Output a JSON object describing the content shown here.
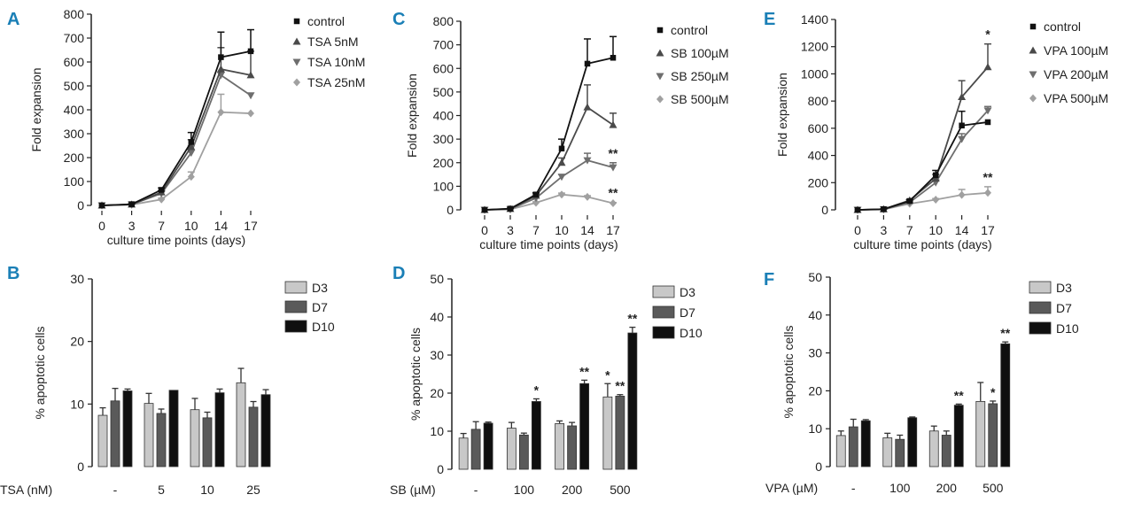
{
  "chart_data": [
    {
      "panel": "A",
      "type": "line",
      "x": [
        0,
        3,
        7,
        10,
        14,
        17
      ],
      "xlabel": "culture time points (days)",
      "ylabel": "Fold expansion",
      "ylim": [
        0,
        800
      ],
      "yticks": [
        0,
        100,
        200,
        300,
        400,
        500,
        600,
        700,
        800
      ],
      "legend_position": "top-right",
      "series": [
        {
          "name": "control",
          "color": "#111111",
          "marker": "square",
          "values": [
            0,
            5,
            65,
            265,
            620,
            645
          ],
          "errors": [
            0,
            2,
            8,
            40,
            105,
            90
          ],
          "stars": []
        },
        {
          "name": "TSA 5nM",
          "color": "#4a4a4a",
          "marker": "triangle-up",
          "values": [
            0,
            4,
            55,
            245,
            570,
            545
          ],
          "errors": [
            0,
            2,
            8,
            30,
            90,
            100
          ],
          "stars": []
        },
        {
          "name": "TSA 10nM",
          "color": "#6e6e6e",
          "marker": "triangle-down",
          "values": [
            0,
            4,
            50,
            220,
            545,
            460
          ],
          "errors": [
            0,
            2,
            8,
            30,
            0,
            0
          ],
          "stars": []
        },
        {
          "name": "TSA 25nM",
          "color": "#a0a0a0",
          "marker": "diamond",
          "values": [
            0,
            3,
            25,
            120,
            390,
            385
          ],
          "errors": [
            0,
            2,
            5,
            20,
            75,
            0
          ],
          "stars": []
        }
      ]
    },
    {
      "panel": "C",
      "type": "line",
      "x": [
        0,
        3,
        7,
        10,
        14,
        17
      ],
      "xlabel": "culture time points (days)",
      "ylabel": "Fold expansion",
      "ylim": [
        0,
        800
      ],
      "yticks": [
        0,
        100,
        200,
        300,
        400,
        500,
        600,
        700,
        800
      ],
      "legend_position": "top-right",
      "series": [
        {
          "name": "control",
          "color": "#111111",
          "marker": "square",
          "values": [
            0,
            5,
            65,
            260,
            620,
            645
          ],
          "errors": [
            0,
            2,
            8,
            40,
            105,
            90
          ],
          "stars": []
        },
        {
          "name": "SB 100µM",
          "color": "#4a4a4a",
          "marker": "triangle-up",
          "values": [
            0,
            4,
            60,
            200,
            435,
            360
          ],
          "errors": [
            0,
            2,
            8,
            20,
            95,
            50
          ],
          "stars": []
        },
        {
          "name": "SB 250µM",
          "color": "#6e6e6e",
          "marker": "triangle-down",
          "values": [
            0,
            3,
            50,
            140,
            210,
            180
          ],
          "errors": [
            0,
            2,
            6,
            10,
            30,
            20
          ],
          "stars": [
            "",
            "",
            "",
            "",
            "",
            "**"
          ]
        },
        {
          "name": "SB 500µM",
          "color": "#a0a0a0",
          "marker": "diamond",
          "values": [
            0,
            2,
            30,
            65,
            55,
            28
          ],
          "errors": [
            0,
            1,
            4,
            6,
            5,
            3
          ],
          "stars": [
            "",
            "",
            "",
            "",
            "",
            "**"
          ]
        }
      ]
    },
    {
      "panel": "E",
      "type": "line",
      "x": [
        0,
        3,
        7,
        10,
        14,
        17
      ],
      "xlabel": "culture time points (days)",
      "ylabel": "Fold expansion",
      "ylim": [
        0,
        1400
      ],
      "yticks": [
        0,
        200,
        400,
        600,
        800,
        1000,
        1200,
        1400
      ],
      "legend_position": "top-right",
      "series": [
        {
          "name": "control",
          "color": "#111111",
          "marker": "square",
          "values": [
            0,
            5,
            65,
            255,
            620,
            645
          ],
          "errors": [
            0,
            2,
            8,
            35,
            105,
            0
          ],
          "stars": []
        },
        {
          "name": "VPA 100µM",
          "color": "#4a4a4a",
          "marker": "triangle-up",
          "values": [
            0,
            5,
            70,
            230,
            830,
            1050
          ],
          "errors": [
            0,
            2,
            8,
            30,
            120,
            170
          ],
          "stars": [
            "",
            "",
            "",
            "",
            "",
            "*"
          ]
        },
        {
          "name": "VPA 200µM",
          "color": "#6e6e6e",
          "marker": "triangle-down",
          "values": [
            0,
            4,
            55,
            200,
            520,
            730
          ],
          "errors": [
            0,
            2,
            6,
            20,
            40,
            30
          ],
          "stars": []
        },
        {
          "name": "VPA 500µM",
          "color": "#a0a0a0",
          "marker": "diamond",
          "values": [
            0,
            3,
            45,
            75,
            110,
            125
          ],
          "errors": [
            0,
            1,
            5,
            8,
            40,
            45
          ],
          "stars": [
            "",
            "",
            "",
            "",
            "",
            "**"
          ]
        }
      ]
    },
    {
      "panel": "B",
      "type": "bar",
      "group_title": "TSA (nM)",
      "categories": [
        "-",
        "5",
        "10",
        "25"
      ],
      "ylabel": "% apoptotic cells",
      "ylim": [
        0,
        30
      ],
      "yticks": [
        0,
        10,
        20,
        30
      ],
      "legend_position": "top-right",
      "series": [
        {
          "name": "D3",
          "color": "#c8c8c8",
          "values": [
            8.2,
            10.1,
            9.1,
            13.4
          ],
          "errors": [
            1.2,
            1.6,
            1.8,
            2.3
          ],
          "stars": [
            "",
            "",
            "",
            ""
          ]
        },
        {
          "name": "D7",
          "color": "#5a5a5a",
          "values": [
            10.5,
            8.5,
            7.8,
            9.5
          ],
          "errors": [
            2.0,
            0.7,
            0.9,
            0.9
          ],
          "stars": [
            "",
            "",
            "",
            ""
          ]
        },
        {
          "name": "D10",
          "color": "#0f0f0f",
          "values": [
            12.1,
            12.2,
            11.8,
            11.5
          ],
          "errors": [
            0.3,
            0.0,
            0.6,
            0.8
          ],
          "stars": [
            "",
            "",
            "",
            ""
          ]
        }
      ]
    },
    {
      "panel": "D",
      "type": "bar",
      "group_title": "SB (µM)",
      "categories": [
        "-",
        "100",
        "200",
        "500"
      ],
      "ylabel": "% apoptotic cells",
      "ylim": [
        0,
        50
      ],
      "yticks": [
        0,
        10,
        20,
        30,
        40,
        50
      ],
      "legend_position": "top-right",
      "series": [
        {
          "name": "D3",
          "color": "#c8c8c8",
          "values": [
            8.2,
            10.8,
            12.0,
            19.0
          ],
          "errors": [
            1.2,
            1.5,
            0.7,
            3.5
          ],
          "stars": [
            "",
            "",
            "",
            "*"
          ]
        },
        {
          "name": "D7",
          "color": "#5a5a5a",
          "values": [
            10.5,
            9.0,
            11.4,
            19.2
          ],
          "errors": [
            2.0,
            0.5,
            0.9,
            0.4
          ],
          "stars": [
            "",
            "",
            "",
            "**"
          ]
        },
        {
          "name": "D10",
          "color": "#0f0f0f",
          "values": [
            12.1,
            17.8,
            22.5,
            35.8
          ],
          "errors": [
            0.3,
            0.7,
            0.9,
            1.5
          ],
          "stars": [
            "",
            "*",
            "**",
            "**"
          ]
        }
      ]
    },
    {
      "panel": "F",
      "type": "bar",
      "group_title": "VPA (µM)",
      "categories": [
        "-",
        "100",
        "200",
        "500"
      ],
      "ylabel": "% apoptotic cells",
      "ylim": [
        0,
        50
      ],
      "yticks": [
        0,
        10,
        20,
        30,
        40,
        50
      ],
      "legend_position": "top-right",
      "series": [
        {
          "name": "D3",
          "color": "#c8c8c8",
          "values": [
            8.2,
            7.6,
            9.4,
            17.2
          ],
          "errors": [
            1.2,
            1.2,
            1.3,
            5.0
          ],
          "stars": [
            "",
            "",
            "",
            ""
          ]
        },
        {
          "name": "D7",
          "color": "#5a5a5a",
          "values": [
            10.5,
            7.2,
            8.3,
            16.6
          ],
          "errors": [
            2.0,
            1.1,
            1.1,
            0.7
          ],
          "stars": [
            "",
            "",
            "",
            "*"
          ]
        },
        {
          "name": "D10",
          "color": "#0f0f0f",
          "values": [
            12.1,
            12.9,
            16.2,
            32.4
          ],
          "errors": [
            0.3,
            0.2,
            0.3,
            0.5
          ],
          "stars": [
            "",
            "",
            "**",
            "**"
          ]
        }
      ]
    }
  ]
}
